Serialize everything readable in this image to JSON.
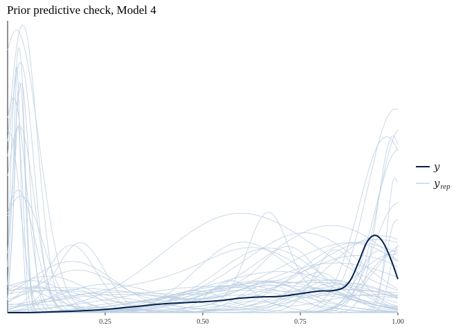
{
  "chart_data": {
    "type": "line",
    "title": "Prior predictive check, Model 4",
    "xlabel": "",
    "ylabel": "",
    "xlim": [
      0,
      1
    ],
    "ylim": [
      0,
      1
    ],
    "x_ticks": [
      "0.25",
      "0.50",
      "0.75",
      "1.00"
    ],
    "x_tick_values": [
      0.25,
      0.5,
      0.75,
      1.0
    ],
    "y_axis_tick_labels": false,
    "grid": false,
    "legend_placement": "right",
    "legend": [
      {
        "key": "y",
        "symbol": "y",
        "subscript": "",
        "color": "#011f4b"
      },
      {
        "key": "yrep",
        "symbol": "y",
        "subscript": "rep",
        "color": "#b8cde0"
      }
    ],
    "colors": {
      "y": "#011f4b",
      "yrep": "#b8cde0"
    },
    "series": [
      {
        "key": "y",
        "x": [
          0.0,
          0.05,
          0.1,
          0.15,
          0.2,
          0.25,
          0.3,
          0.35,
          0.4,
          0.45,
          0.5,
          0.55,
          0.6,
          0.65,
          0.7,
          0.75,
          0.8,
          0.83,
          0.86,
          0.88,
          0.9,
          0.92,
          0.94,
          0.96,
          0.98,
          1.0
        ],
        "y": [
          0.0,
          0.0,
          0.002,
          0.004,
          0.007,
          0.011,
          0.017,
          0.024,
          0.03,
          0.034,
          0.037,
          0.042,
          0.05,
          0.054,
          0.056,
          0.065,
          0.074,
          0.075,
          0.085,
          0.115,
          0.175,
          0.24,
          0.265,
          0.245,
          0.19,
          0.115
        ]
      }
    ],
    "yrep_draws": 60,
    "yrep_seed": 4
  }
}
